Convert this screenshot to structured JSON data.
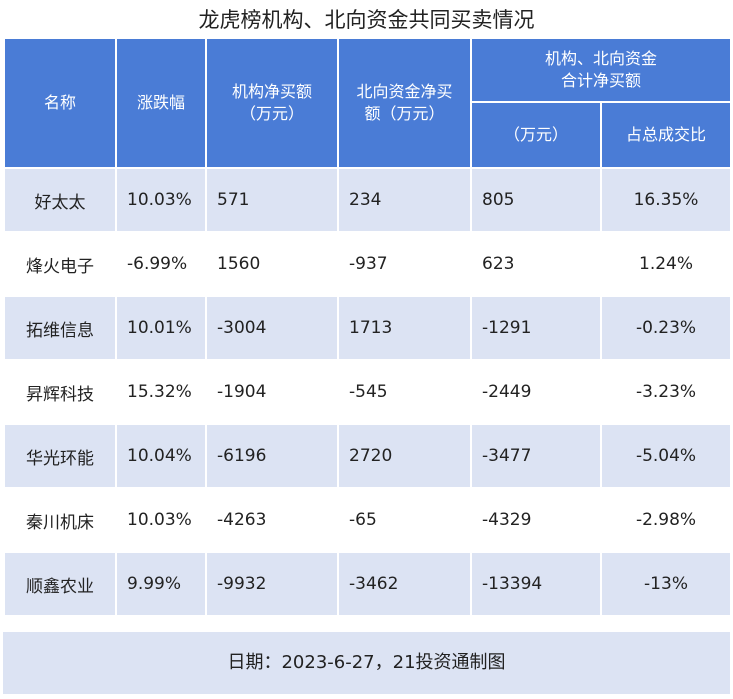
{
  "title": "龙虎榜机构、北向资金共同买卖情况",
  "headers": {
    "name": "名称",
    "change": "涨跌幅",
    "inst": "机构净买额\n（万元）",
    "north": "北向资金净买\n额（万元）",
    "combined": "机构、北向资金\n合计净买额",
    "combined_unit": "（万元）",
    "ratio": "占总成交比"
  },
  "rows": [
    {
      "name": "好太太",
      "change": "10.03%",
      "inst": "571",
      "north": "234",
      "total": "805",
      "ratio": "16.35%"
    },
    {
      "name": "烽火电子",
      "change": "-6.99%",
      "inst": "1560",
      "north": "-937",
      "total": "623",
      "ratio": "1.24%"
    },
    {
      "name": "拓维信息",
      "change": "10.01%",
      "inst": "-3004",
      "north": "1713",
      "total": "-1291",
      "ratio": "-0.23%"
    },
    {
      "name": "昇辉科技",
      "change": "15.32%",
      "inst": "-1904",
      "north": "-545",
      "total": "-2449",
      "ratio": "-3.23%"
    },
    {
      "name": "华光环能",
      "change": "10.04%",
      "inst": "-6196",
      "north": "2720",
      "total": "-3477",
      "ratio": "-5.04%"
    },
    {
      "name": "秦川机床",
      "change": "10.03%",
      "inst": "-4263",
      "north": "-65",
      "total": "-4329",
      "ratio": "-2.98%"
    },
    {
      "name": "顺鑫农业",
      "change": "9.99%",
      "inst": "-9932",
      "north": "-3462",
      "total": "-13394",
      "ratio": "-13%"
    }
  ],
  "footer": "日期：2023-6-27，21投资通制图",
  "colors": {
    "header": "#4a7cd6",
    "band": "#dce3f3"
  }
}
